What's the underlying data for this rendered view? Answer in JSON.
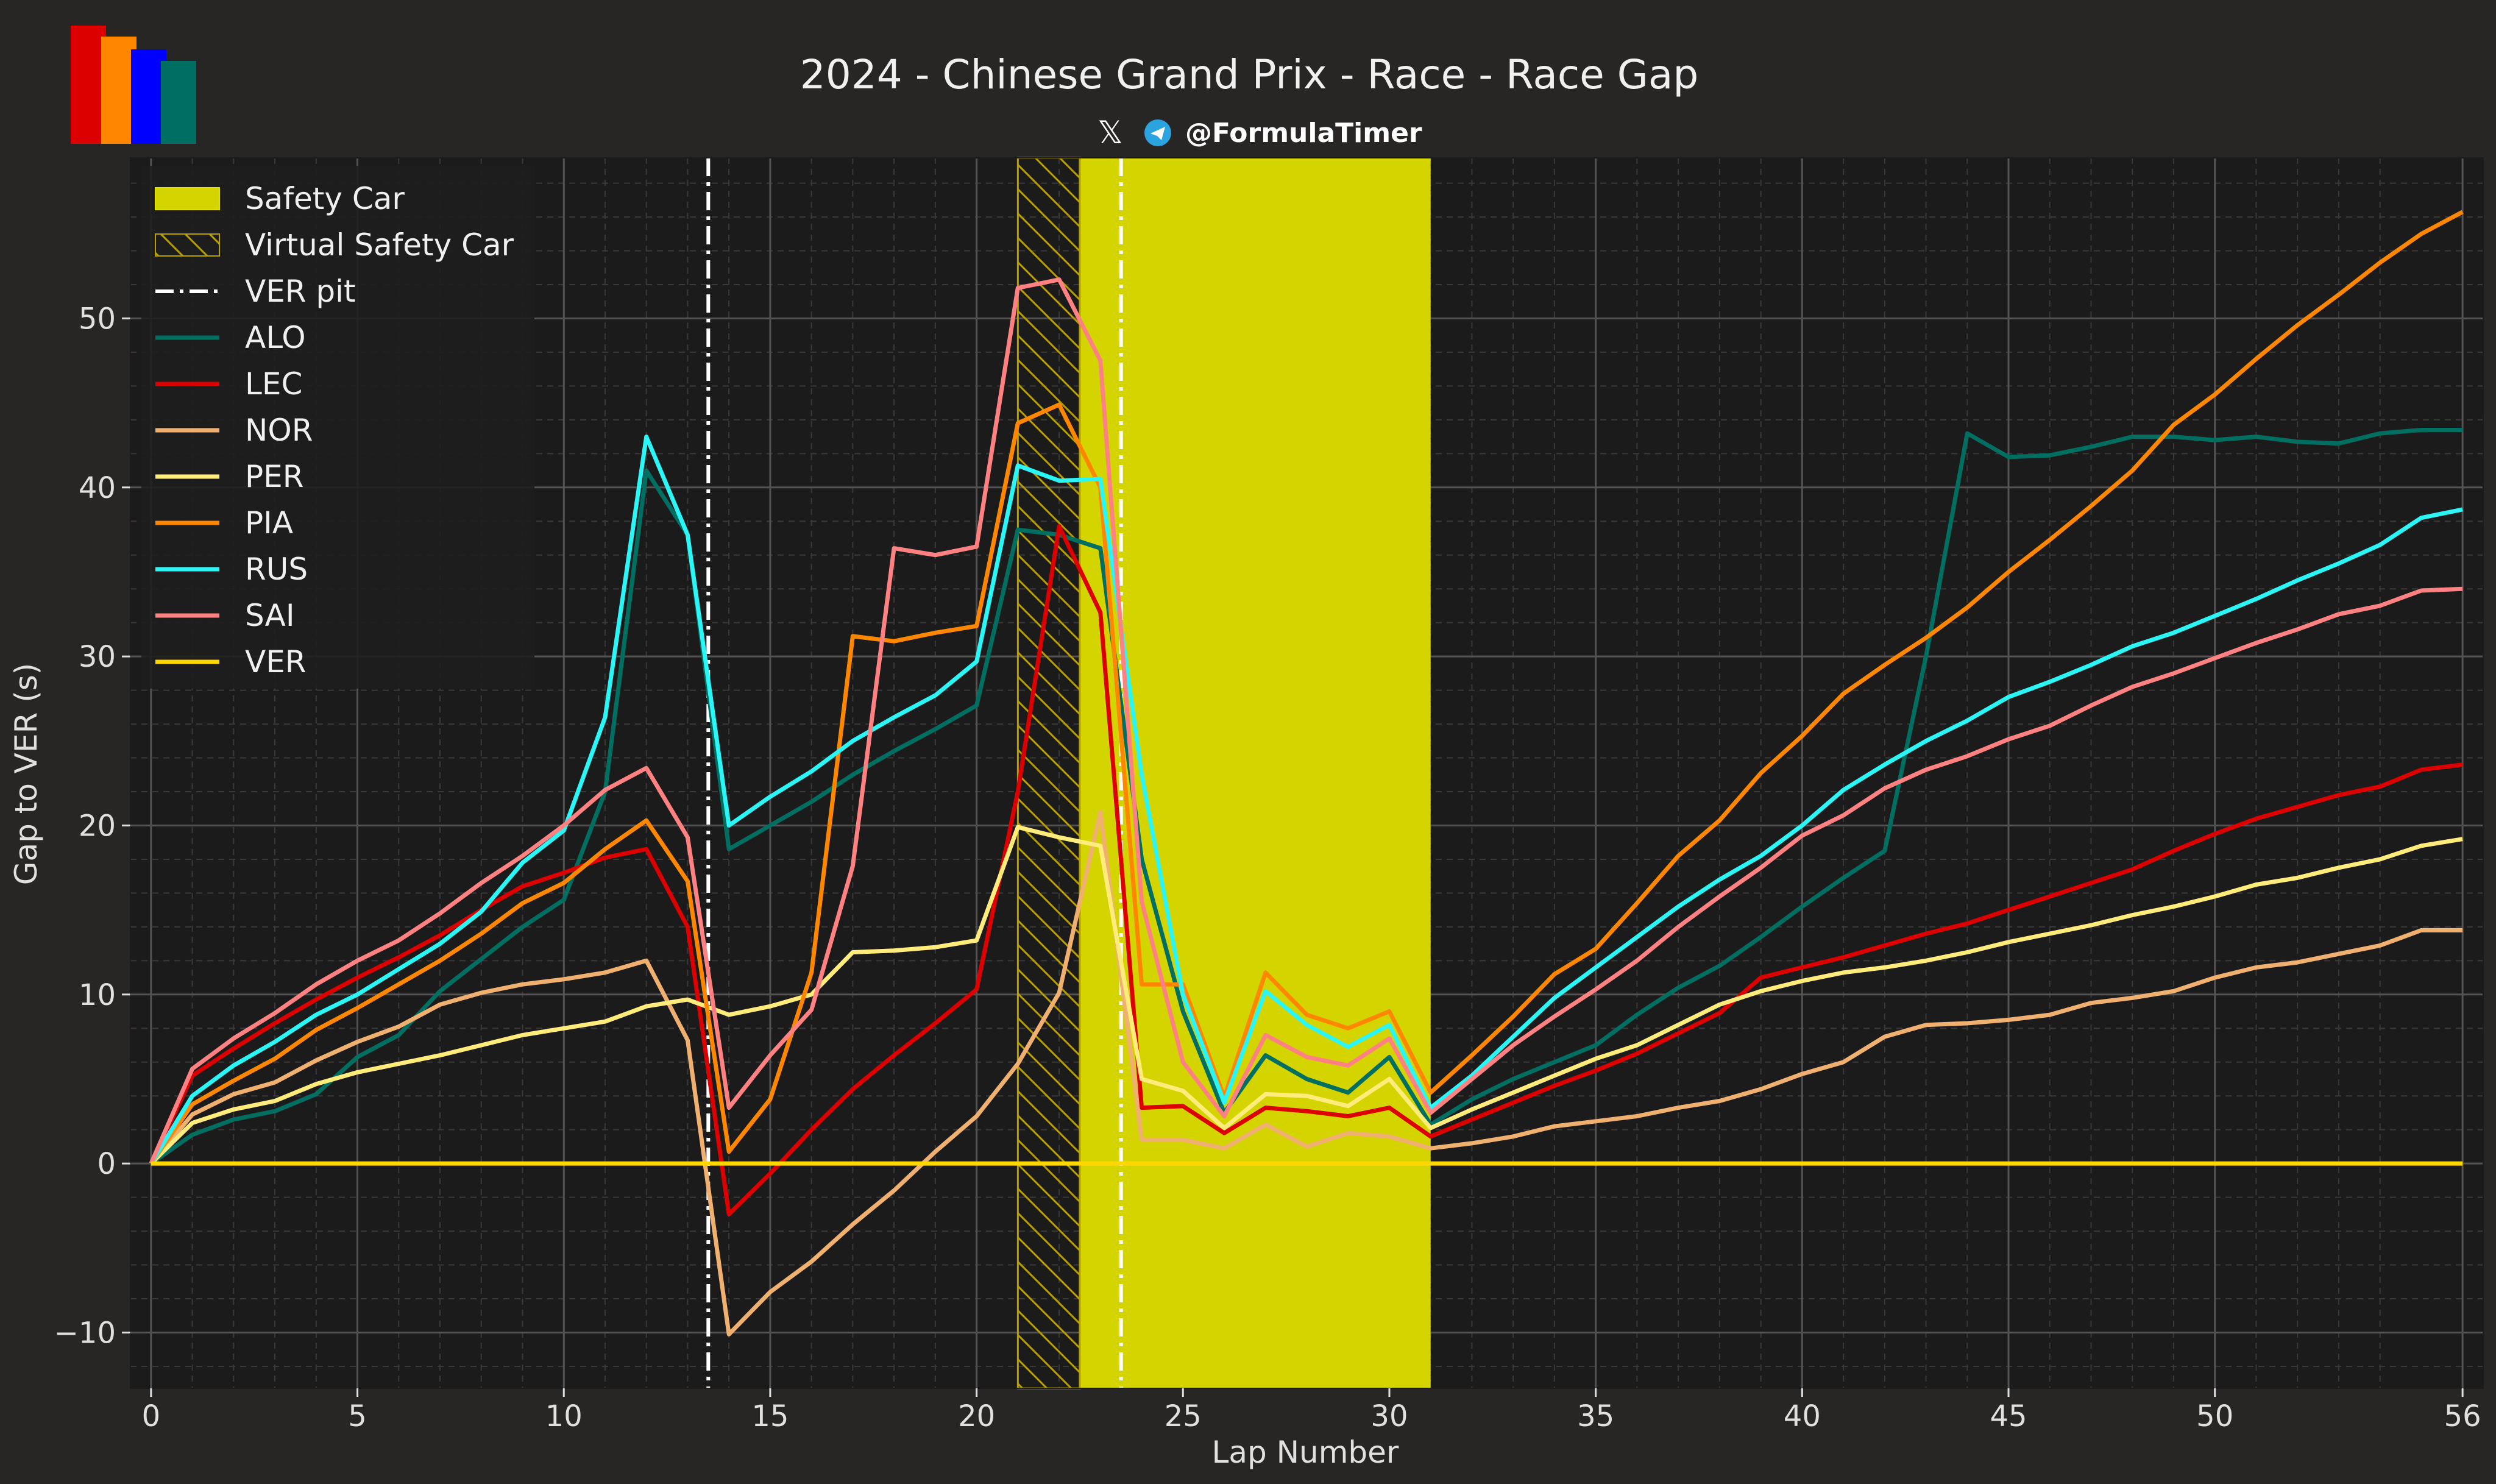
{
  "header": {
    "title": "2024 - Chinese Grand Prix - Race - Race Gap",
    "handle": "@FormulaTimer",
    "icons": [
      "x-logo-icon",
      "telegram-icon"
    ],
    "logo_colors": [
      "#DC0000",
      "#FF8700",
      "#0000FF",
      "#006F62"
    ]
  },
  "chart_data": {
    "type": "line",
    "title": "2024 - Chinese Grand Prix - Race - Race Gap",
    "xlabel": "Lap Number",
    "ylabel": "Gap to VER (s)",
    "xlim": [
      -0.5,
      56.5
    ],
    "ylim": [
      -13.3,
      59.5
    ],
    "xticks": [
      0,
      5,
      10,
      15,
      20,
      25,
      30,
      35,
      40,
      45,
      50,
      56
    ],
    "yticks": [
      -10,
      0,
      10,
      20,
      30,
      40,
      50
    ],
    "grid": true,
    "legend_position": "top-left",
    "safety_car": {
      "label": "Safety Car",
      "start": 22.5,
      "end": 31,
      "color": "#D4D400"
    },
    "virtual_safety_car": {
      "label": "Virtual Safety Car",
      "start": 21,
      "end": 22.5,
      "color": "#B8A000"
    },
    "ver_pit": {
      "label": "VER pit",
      "laps": [
        13.5,
        23.5
      ]
    },
    "x": [
      0,
      1,
      2,
      3,
      4,
      5,
      6,
      7,
      8,
      9,
      10,
      11,
      12,
      13,
      14,
      15,
      16,
      17,
      18,
      19,
      20,
      21,
      22,
      23,
      24,
      25,
      26,
      27,
      28,
      29,
      30,
      31,
      32,
      33,
      34,
      35,
      36,
      37,
      38,
      39,
      40,
      41,
      42,
      43,
      44,
      45,
      46,
      47,
      48,
      49,
      50,
      51,
      52,
      53,
      54,
      55,
      56
    ],
    "series": [
      {
        "name": "ALO",
        "color": "#006F62",
        "values": [
          0,
          1.7,
          2.6,
          3.1,
          4.1,
          6.3,
          7.6,
          10.2,
          12.1,
          14,
          15.6,
          22,
          41,
          37.2,
          18.6,
          20,
          21.4,
          23,
          24.4,
          25.7,
          27.1,
          37.5,
          37.2,
          36.4,
          18,
          9,
          3,
          6.4,
          5,
          4.2,
          6.3,
          2.3,
          3.8,
          5,
          6,
          7,
          8.8,
          10.4,
          11.7,
          13.4,
          15.2,
          16.9,
          18.5,
          30,
          43.2,
          41.8,
          41.9,
          42.4,
          43,
          43,
          42.8,
          43,
          42.7,
          42.6,
          43.2,
          43.4,
          43.4
        ]
      },
      {
        "name": "LEC",
        "color": "#DC0000",
        "values": [
          0,
          5.2,
          6.8,
          8.3,
          9.7,
          11,
          12.2,
          13.5,
          15,
          16.4,
          17.2,
          18.1,
          18.6,
          14,
          -3,
          -0.6,
          2,
          4.4,
          6.4,
          8.3,
          10.3,
          22,
          37.7,
          32.6,
          3.3,
          3.4,
          1.8,
          3.3,
          3.1,
          2.8,
          3.3,
          1.6,
          2.6,
          3.6,
          4.6,
          5.5,
          6.5,
          7.7,
          8.9,
          11,
          11.6,
          12.2,
          12.9,
          13.6,
          14.2,
          15,
          15.8,
          16.6,
          17.4,
          18.5,
          19.5,
          20.4,
          21.1,
          21.8,
          22.3,
          23.3,
          23.6
        ]
      },
      {
        "name": "NOR",
        "color": "#F0B070",
        "values": [
          0,
          2.9,
          4.1,
          4.8,
          6.1,
          7.2,
          8.1,
          9.4,
          10.1,
          10.6,
          10.9,
          11.3,
          12,
          7.3,
          -10.1,
          -7.6,
          -5.8,
          -3.6,
          -1.6,
          0.7,
          2.8,
          5.9,
          10.1,
          20.8,
          1.4,
          1.4,
          0.9,
          2.3,
          1,
          1.8,
          1.6,
          0.9,
          1.2,
          1.6,
          2.2,
          2.5,
          2.8,
          3.3,
          3.7,
          4.4,
          5.3,
          6,
          7.5,
          8.2,
          8.3,
          8.5,
          8.8,
          9.5,
          9.8,
          10.2,
          11,
          11.6,
          11.9,
          12.4,
          12.9,
          13.8,
          13.8
        ]
      },
      {
        "name": "PER",
        "color": "#FFEC7B",
        "values": [
          0,
          2.4,
          3.2,
          3.7,
          4.7,
          5.4,
          5.9,
          6.4,
          7,
          7.6,
          8,
          8.4,
          9.3,
          9.7,
          8.8,
          9.3,
          10,
          12.5,
          12.6,
          12.8,
          13.2,
          19.9,
          19.3,
          18.8,
          5,
          4.3,
          2.1,
          4.1,
          4,
          3.4,
          5,
          2.1,
          3.2,
          4.2,
          5.2,
          6.2,
          7,
          8.2,
          9.4,
          10.2,
          10.8,
          11.3,
          11.6,
          12,
          12.5,
          13.1,
          13.6,
          14.1,
          14.7,
          15.2,
          15.8,
          16.5,
          16.9,
          17.5,
          18,
          18.8,
          19.2
        ]
      },
      {
        "name": "PIA",
        "color": "#FF8700",
        "values": [
          0,
          3.5,
          4.9,
          6.2,
          7.9,
          9.2,
          10.6,
          12,
          13.6,
          15.4,
          16.6,
          18.6,
          20.3,
          16.7,
          0.7,
          3.8,
          11.3,
          31.2,
          30.9,
          31.4,
          31.8,
          43.8,
          44.9,
          40,
          10.6,
          10.6,
          3.9,
          11.3,
          8.8,
          8,
          9,
          4.2,
          6.4,
          8.7,
          11.2,
          12.7,
          15.4,
          18.2,
          20.3,
          23.1,
          25.3,
          27.8,
          29.5,
          31.1,
          32.9,
          35,
          36.9,
          38.9,
          41,
          43.7,
          45.5,
          47.6,
          49.6,
          51.4,
          53.3,
          55,
          56.3
        ]
      },
      {
        "name": "RUS",
        "color": "#2BF5F5",
        "values": [
          0,
          4,
          5.8,
          7.2,
          8.8,
          10,
          11.5,
          13,
          14.9,
          17.8,
          19.7,
          26.4,
          43,
          37.2,
          20,
          21.7,
          23.2,
          25,
          26.4,
          27.7,
          29.7,
          41.3,
          40.4,
          40.5,
          23,
          10,
          3.6,
          10.2,
          8.2,
          6.9,
          8.2,
          3.3,
          5.2,
          7.5,
          9.8,
          11.6,
          13.4,
          15.2,
          16.8,
          18.2,
          20,
          22.1,
          23.6,
          25,
          26.2,
          27.6,
          28.5,
          29.5,
          30.6,
          31.4,
          32.4,
          33.4,
          34.5,
          35.5,
          36.6,
          38.2,
          38.7
        ]
      },
      {
        "name": "SAI",
        "color": "#FF8181",
        "values": [
          0,
          5.6,
          7.4,
          8.9,
          10.6,
          12,
          13.2,
          14.8,
          16.6,
          18.2,
          20,
          22.1,
          23.4,
          19.3,
          3.3,
          6.4,
          9.1,
          17.6,
          36.4,
          36,
          36.5,
          51.8,
          52.3,
          47.5,
          15.5,
          6,
          2.8,
          7.6,
          6.3,
          5.8,
          7.4,
          3,
          5,
          7,
          8.7,
          10.3,
          12,
          14,
          15.8,
          17.5,
          19.4,
          20.6,
          22.2,
          23.3,
          24.1,
          25.1,
          25.9,
          27.1,
          28.2,
          29,
          29.9,
          30.8,
          31.6,
          32.5,
          33,
          33.9,
          34
        ]
      },
      {
        "name": "VER",
        "color": "#FFD700",
        "values": [
          0,
          0,
          0,
          0,
          0,
          0,
          0,
          0,
          0,
          0,
          0,
          0,
          0,
          0,
          0,
          0,
          0,
          0,
          0,
          0,
          0,
          0,
          0,
          0,
          0,
          0,
          0,
          0,
          0,
          0,
          0,
          0,
          0,
          0,
          0,
          0,
          0,
          0,
          0,
          0,
          0,
          0,
          0,
          0,
          0,
          0,
          0,
          0,
          0,
          0,
          0,
          0,
          0,
          0,
          0,
          0,
          0
        ]
      }
    ]
  }
}
